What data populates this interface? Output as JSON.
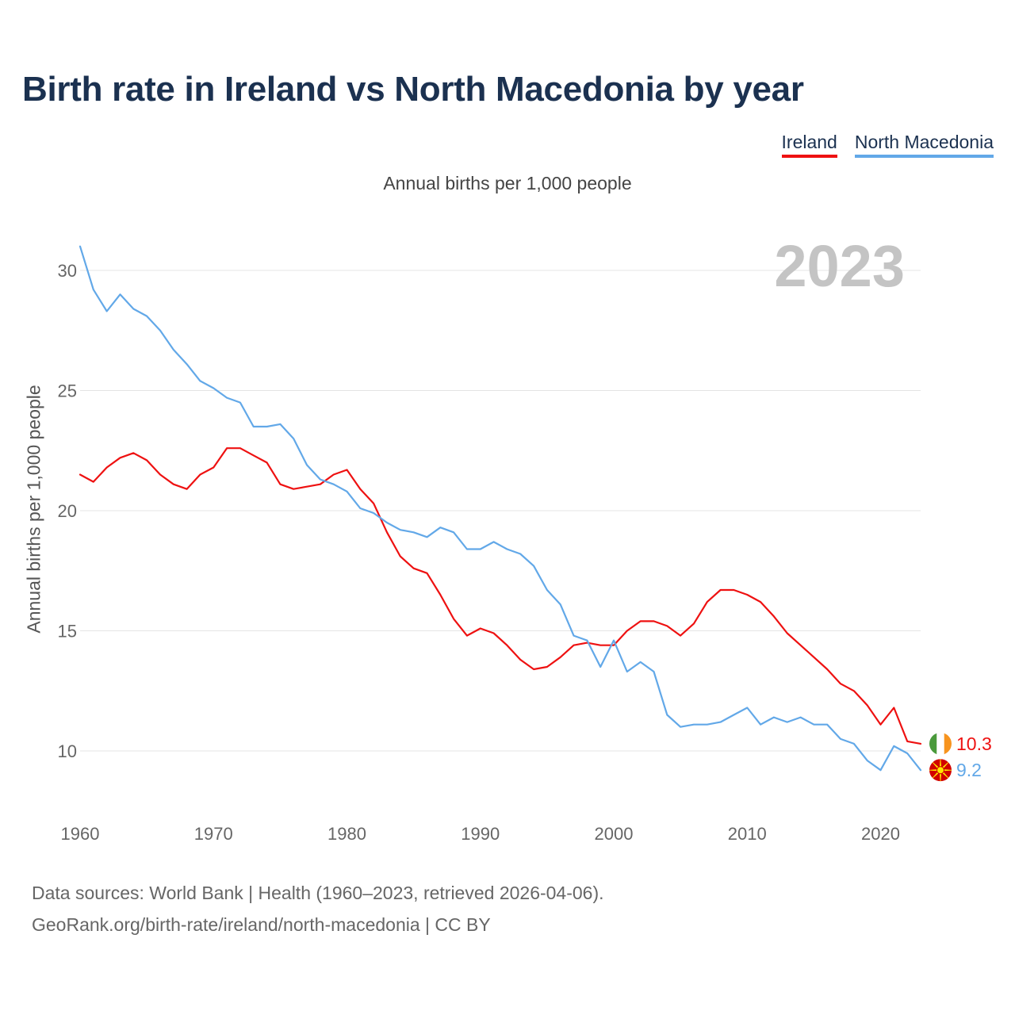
{
  "title": "Birth rate in Ireland vs North Macedonia by year",
  "subtitle": "Annual births per 1,000 people",
  "legend": [
    {
      "label": "Ireland",
      "color": "#ee1111"
    },
    {
      "label": "North Macedonia",
      "color": "#62a8e8"
    }
  ],
  "sources": {
    "line1": "Data sources: World Bank | Health (1960–2023, retrieved 2026-04-06).",
    "line2": "GeoRank.org/birth-rate/ireland/north-macedonia | CC BY"
  },
  "chart_data": {
    "type": "line",
    "title": "Birth rate in Ireland vs North Macedonia by year",
    "subtitle": "Annual births per 1,000 people",
    "xlabel": "",
    "ylabel": "Annual births per 1,000 people",
    "xlim": [
      1960,
      2023
    ],
    "ylim": [
      8,
      31
    ],
    "xticks": [
      1960,
      1970,
      1980,
      1990,
      2000,
      2010,
      2020
    ],
    "yticks": [
      10,
      15,
      20,
      25,
      30
    ],
    "grid": true,
    "legend_position": "top-right",
    "year_label": "2023",
    "x": [
      1960,
      1961,
      1962,
      1963,
      1964,
      1965,
      1966,
      1967,
      1968,
      1969,
      1970,
      1971,
      1972,
      1973,
      1974,
      1975,
      1976,
      1977,
      1978,
      1979,
      1980,
      1981,
      1982,
      1983,
      1984,
      1985,
      1986,
      1987,
      1988,
      1989,
      1990,
      1991,
      1992,
      1993,
      1994,
      1995,
      1996,
      1997,
      1998,
      1999,
      2000,
      2001,
      2002,
      2003,
      2004,
      2005,
      2006,
      2007,
      2008,
      2009,
      2010,
      2011,
      2012,
      2013,
      2014,
      2015,
      2016,
      2017,
      2018,
      2019,
      2020,
      2021,
      2022,
      2023
    ],
    "series": [
      {
        "name": "Ireland",
        "color": "#ee1111",
        "end_label": "10.3",
        "flag_icon": "ireland-flag-icon",
        "values": [
          21.5,
          21.2,
          21.8,
          22.2,
          22.4,
          22.1,
          21.5,
          21.1,
          20.9,
          21.5,
          21.8,
          22.6,
          22.6,
          22.3,
          22.0,
          21.1,
          20.9,
          21.0,
          21.1,
          21.5,
          21.7,
          20.9,
          20.3,
          19.1,
          18.1,
          17.6,
          17.4,
          16.5,
          15.5,
          14.8,
          15.1,
          14.9,
          14.4,
          13.8,
          13.4,
          13.5,
          13.9,
          14.4,
          14.5,
          14.4,
          14.4,
          15.0,
          15.4,
          15.4,
          15.2,
          14.8,
          15.3,
          16.2,
          16.7,
          16.7,
          16.5,
          16.2,
          15.6,
          14.9,
          14.4,
          13.9,
          13.4,
          12.8,
          12.5,
          11.9,
          11.1,
          11.8,
          10.4,
          10.3
        ]
      },
      {
        "name": "North Macedonia",
        "color": "#62a8e8",
        "end_label": "9.2",
        "flag_icon": "north-macedonia-flag-icon",
        "values": [
          31.0,
          29.2,
          28.3,
          29.0,
          28.4,
          28.1,
          27.5,
          26.7,
          26.1,
          25.4,
          25.1,
          24.7,
          24.5,
          23.5,
          23.5,
          23.6,
          23.0,
          21.9,
          21.3,
          21.1,
          20.8,
          20.1,
          19.9,
          19.5,
          19.2,
          19.1,
          18.9,
          19.3,
          19.1,
          18.4,
          18.4,
          18.7,
          18.4,
          18.2,
          17.7,
          16.7,
          16.1,
          14.8,
          14.6,
          13.5,
          14.6,
          13.3,
          13.7,
          13.3,
          11.5,
          11.0,
          11.1,
          11.1,
          11.2,
          11.5,
          11.8,
          11.1,
          11.4,
          11.2,
          11.4,
          11.1,
          11.1,
          10.5,
          10.3,
          9.6,
          9.2,
          10.2,
          9.9,
          9.2
        ]
      }
    ]
  }
}
